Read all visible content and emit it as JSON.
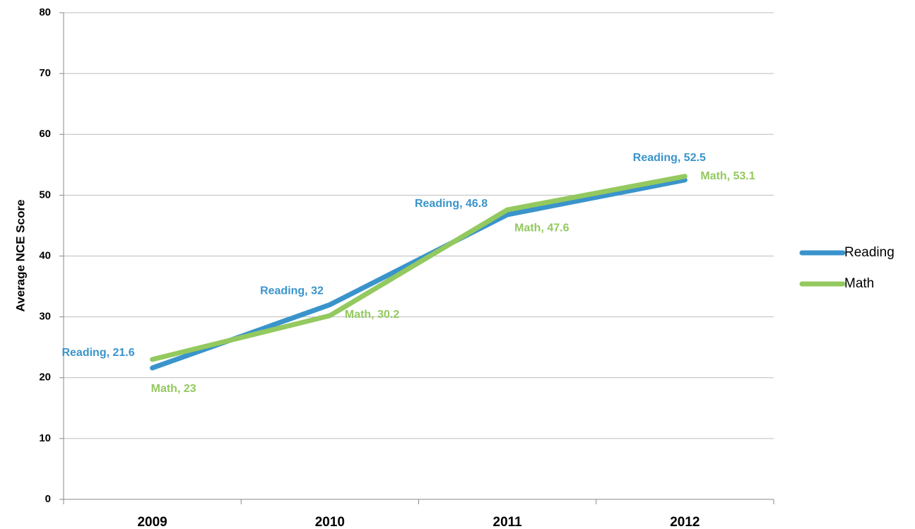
{
  "chart_data": {
    "type": "line",
    "y_label": "Average NCE Score",
    "categories": [
      "2009",
      "2010",
      "2011",
      "2012"
    ],
    "series": [
      {
        "name": "Reading",
        "color": "#3a94cb",
        "values": [
          21.6,
          32,
          46.8,
          52.5
        ],
        "value_labels": [
          "Reading, 21.6",
          "Reading, 32",
          "Reading, 46.8",
          "Reading, 52.5"
        ]
      },
      {
        "name": "Math",
        "color": "#93c95f",
        "values": [
          23,
          30.2,
          47.6,
          53.1
        ],
        "value_labels": [
          "Math, 23",
          "Math, 30.2",
          "Math, 47.6",
          "Math, 53.1"
        ]
      }
    ],
    "ylim": [
      0,
      80
    ],
    "yticks": [
      0,
      10,
      20,
      30,
      40,
      50,
      60,
      70,
      80
    ],
    "grid": true,
    "legend": "right"
  }
}
